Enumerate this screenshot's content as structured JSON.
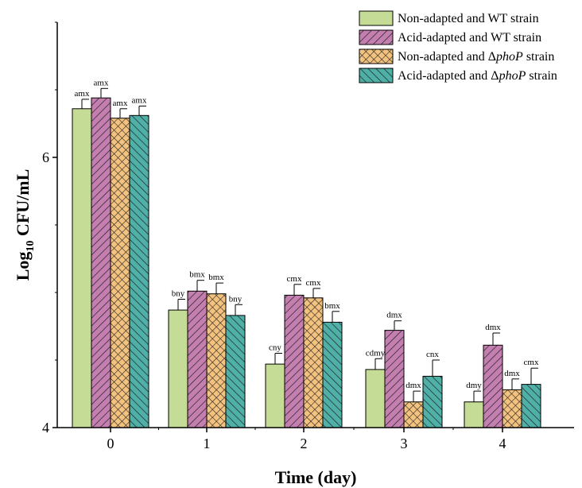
{
  "chart_data": {
    "type": "bar",
    "xlabel": "Time (day)",
    "ylabel_main": "Log",
    "ylabel_sub": "10",
    "ylabel_rest": " CFU/mL",
    "categories": [
      "0",
      "1",
      "2",
      "3",
      "4"
    ],
    "ylim": [
      4,
      7.0
    ],
    "yticks": [
      4,
      6
    ],
    "grid": false,
    "legend_position": "top-right",
    "series": [
      {
        "name": "Non-adapted and WT strain",
        "legend_prefix": "Non-adapted and WT strain",
        "legend_italic": "",
        "legend_suffix": "",
        "color": "#c5dc96",
        "pattern": "none",
        "values": [
          6.36,
          4.87,
          4.47,
          4.43,
          4.19
        ],
        "errors": [
          0.07,
          0.08,
          0.08,
          0.08,
          0.08
        ],
        "labels": [
          "amx",
          "bny",
          "cny",
          "cdmy",
          "dmy"
        ]
      },
      {
        "name": "Acid-adapted and WT strain",
        "legend_prefix": "Acid-adapted and WT strain",
        "legend_italic": "",
        "legend_suffix": "",
        "color": "#c47fb0",
        "pattern": "diag",
        "values": [
          6.44,
          5.01,
          4.98,
          4.72,
          4.61
        ],
        "errors": [
          0.07,
          0.08,
          0.08,
          0.07,
          0.09
        ],
        "labels": [
          "amx",
          "bmx",
          "cmx",
          "dmx",
          "dmx"
        ]
      },
      {
        "name": "Non-adapted and ΔphoP strain",
        "legend_prefix": "Non-adapted and Δ",
        "legend_italic": "phoP",
        "legend_suffix": " strain",
        "color": "#f4c27f",
        "pattern": "cross",
        "values": [
          6.29,
          4.99,
          4.96,
          4.19,
          4.28
        ],
        "errors": [
          0.07,
          0.08,
          0.07,
          0.08,
          0.08
        ],
        "labels": [
          "amx",
          "bmx",
          "cmx",
          "dmx",
          "dmx"
        ]
      },
      {
        "name": "Acid-adapted and ΔphoP strain",
        "legend_prefix": "Acid-adapted and Δ",
        "legend_italic": "phoP",
        "legend_suffix": " strain",
        "color": "#4fb0a8",
        "pattern": "anti",
        "values": [
          6.31,
          4.83,
          4.78,
          4.38,
          4.32
        ],
        "errors": [
          0.07,
          0.08,
          0.08,
          0.12,
          0.12
        ],
        "labels": [
          "amx",
          "bny",
          "bmx",
          "cnx",
          "cmx"
        ]
      }
    ]
  }
}
